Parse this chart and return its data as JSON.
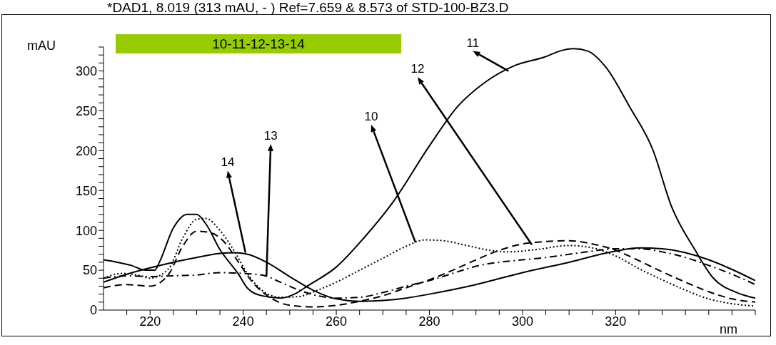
{
  "chart_data": {
    "type": "line",
    "title": "*DAD1, 8.019 (313 mAU, - ) Ref=7.659 & 8.573 of STD-100-BZ3.D",
    "subtitle": "10-11-12-13-14",
    "xlabel": "nm",
    "ylabel": "mAU",
    "xlim": [
      210,
      350
    ],
    "ylim": [
      0,
      330
    ],
    "xticks": [
      {
        "value": 215,
        "label": null
      },
      220,
      {
        "value": 225,
        "label": null
      },
      {
        "value": 230,
        "label": null
      },
      {
        "value": 235,
        "label": null
      },
      240,
      {
        "value": 245,
        "label": null
      },
      {
        "value": 250,
        "label": null
      },
      {
        "value": 255,
        "label": null
      },
      260,
      {
        "value": 265,
        "label": null
      },
      {
        "value": 270,
        "label": null
      },
      {
        "value": 275,
        "label": null
      },
      280,
      {
        "value": 285,
        "label": null
      },
      {
        "value": 290,
        "label": null
      },
      {
        "value": 295,
        "label": null
      },
      300,
      {
        "value": 305,
        "label": null
      },
      {
        "value": 310,
        "label": null
      },
      {
        "value": 315,
        "label": null
      },
      320,
      {
        "value": 325,
        "label": null
      },
      {
        "value": 330,
        "label": null
      },
      {
        "value": 335,
        "label": null
      },
      {
        "value": 340,
        "label": null
      },
      {
        "value": 345,
        "label": null
      },
      {
        "value": 350,
        "label": null
      }
    ],
    "yticks": [
      0,
      {
        "value": 10,
        "label": null
      },
      {
        "value": 20,
        "label": null
      },
      {
        "value": 30,
        "label": null
      },
      {
        "value": 40,
        "label": null
      },
      50,
      {
        "value": 60,
        "label": null
      },
      {
        "value": 70,
        "label": null
      },
      {
        "value": 80,
        "label": null
      },
      {
        "value": 90,
        "label": null
      },
      100,
      {
        "value": 110,
        "label": null
      },
      {
        "value": 120,
        "label": null
      },
      {
        "value": 130,
        "label": null
      },
      {
        "value": 140,
        "label": null
      },
      150,
      {
        "value": 160,
        "label": null
      },
      {
        "value": 170,
        "label": null
      },
      {
        "value": 180,
        "label": null
      },
      {
        "value": 190,
        "label": null
      },
      200,
      {
        "value": 210,
        "label": null
      },
      {
        "value": 220,
        "label": null
      },
      {
        "value": 230,
        "label": null
      },
      {
        "value": 240,
        "label": null
      },
      250,
      {
        "value": 260,
        "label": null
      },
      {
        "value": 270,
        "label": null
      },
      {
        "value": 280,
        "label": null
      },
      {
        "value": 290,
        "label": null
      },
      300,
      {
        "value": 310,
        "label": null
      },
      {
        "value": 320,
        "label": null
      },
      {
        "value": 330,
        "label": null
      }
    ],
    "marker": "none",
    "series": [
      {
        "color": "#000000",
        "line_style": "dotted",
        "x": [
          210,
          214,
          218,
          220,
          224,
          227,
          230,
          232,
          235,
          238,
          241,
          244,
          248,
          252,
          256,
          260,
          265,
          270,
          275,
          279,
          283,
          288,
          293,
          297,
          303,
          310,
          315,
          320,
          325,
          330,
          335,
          340,
          345,
          350
        ],
        "values": [
          40,
          46,
          43,
          40,
          52,
          90,
          114,
          115,
          100,
          75,
          45,
          25,
          16,
          17,
          25,
          35,
          50,
          65,
          80,
          88,
          87,
          81,
          75,
          73,
          76,
          81,
          78,
          68,
          52,
          38,
          25,
          14,
          8,
          5
        ]
      },
      {
        "color": "#000000",
        "line_style": "solid",
        "x": [
          210,
          213,
          216,
          219,
          221,
          222,
          225,
          228,
          230,
          232,
          235,
          239,
          241,
          244,
          248,
          251,
          254,
          260,
          266,
          272,
          280,
          286,
          292,
          298,
          305,
          308,
          311,
          314,
          318,
          323,
          328,
          332,
          337,
          341,
          346,
          350
        ],
        "values": [
          63,
          60,
          56,
          50,
          50,
          60,
          103,
          120,
          120,
          108,
          76,
          45,
          27,
          18,
          15,
          20,
          31,
          54,
          91,
          134,
          206,
          255,
          286,
          306,
          318,
          325,
          328,
          325,
          304,
          255,
          201,
          130,
          76,
          40,
          22,
          15
        ]
      },
      {
        "color": "#000000",
        "line_style": "dashed",
        "x": [
          210,
          215,
          220,
          224,
          227,
          230,
          233,
          236,
          239,
          242,
          246,
          250,
          255,
          260,
          265,
          270,
          275,
          280,
          285,
          290,
          295,
          300,
          305,
          310,
          315,
          320,
          325,
          330,
          335,
          340,
          345,
          350
        ],
        "values": [
          28,
          32,
          30,
          45,
          80,
          99,
          97,
          85,
          60,
          35,
          15,
          6,
          4,
          6,
          11,
          18,
          28,
          38,
          50,
          63,
          75,
          83,
          86,
          87,
          83,
          75,
          62,
          48,
          35,
          23,
          14,
          10
        ]
      },
      {
        "color": "#000000",
        "line_style": "dashdot",
        "x": [
          210,
          215,
          220,
          225,
          230,
          235,
          240,
          244,
          248,
          252,
          256,
          260,
          265,
          270,
          275,
          280,
          285,
          290,
          295,
          300,
          305,
          310,
          315,
          320,
          325,
          330,
          335,
          340,
          345,
          350
        ],
        "values": [
          40,
          43,
          42,
          43,
          44,
          47,
          46,
          44,
          35,
          25,
          18,
          15,
          16,
          22,
          30,
          37,
          46,
          55,
          60,
          63,
          66,
          70,
          74,
          77,
          77,
          73,
          66,
          56,
          45,
          32
        ]
      },
      {
        "color": "#000000",
        "line_style": "solid",
        "x": [
          210,
          215,
          220,
          225,
          230,
          235,
          238,
          241,
          245,
          250,
          255,
          260,
          265,
          270,
          275,
          280,
          290,
          300,
          310,
          320,
          325,
          330,
          335,
          340,
          345,
          350
        ],
        "values": [
          35,
          45,
          53,
          60,
          66,
          71,
          72,
          70,
          60,
          42,
          25,
          14,
          11,
          12,
          15,
          20,
          32,
          47,
          60,
          74,
          78,
          77,
          72,
          63,
          51,
          37
        ]
      }
    ],
    "annotations": [
      {
        "text": "10",
        "x": 277,
        "y": 85
      },
      {
        "text": "11",
        "x": 297,
        "y": 300
      },
      {
        "text": "12",
        "x": 302,
        "y": 82
      },
      {
        "text": "13",
        "x": 245,
        "y": 43
      },
      {
        "text": "14",
        "x": 240.5,
        "y": 72
      }
    ]
  }
}
